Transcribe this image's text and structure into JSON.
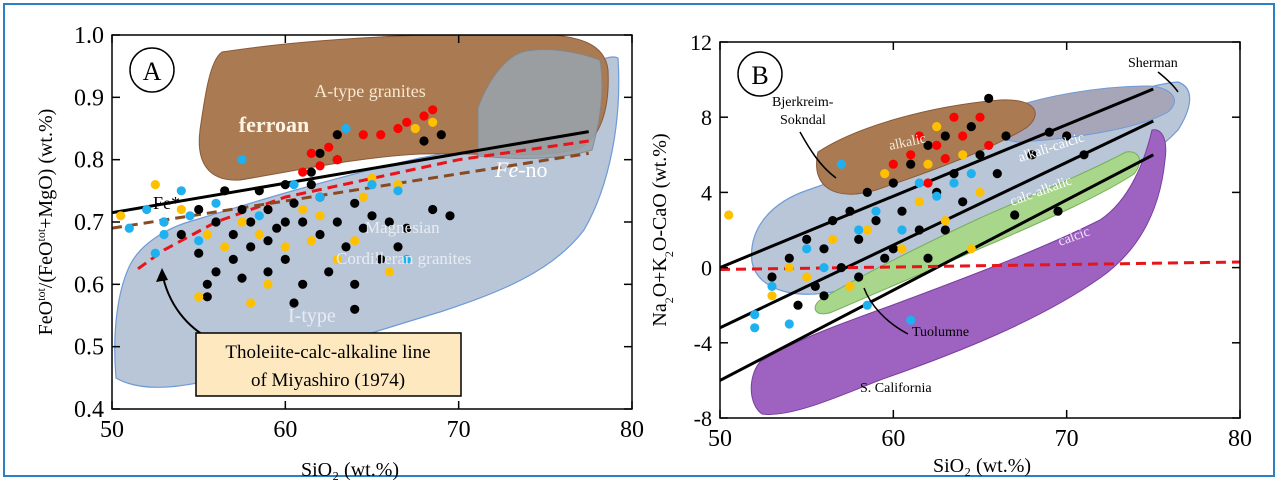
{
  "chart_data": [
    {
      "panel": "A",
      "type": "scatter",
      "xlabel": "SiO₂ (wt.%)",
      "ylabel_parts": [
        "FeO",
        "tot",
        "/(FeO",
        "tot",
        "+MgO) (wt.%)"
      ],
      "xlim": [
        50,
        80
      ],
      "ylim": [
        0.4,
        1.0
      ],
      "xticks": [
        "50",
        "60",
        "70",
        "80"
      ],
      "yticks": [
        "0.4",
        "0.5",
        "0.6",
        "0.7",
        "0.8",
        "0.9",
        "1.0"
      ],
      "field_labels": {
        "atype": "A-type granites",
        "ferroan": "ferroan",
        "feno_prefix": "Fe",
        "feno_suffix": "-no",
        "fe_star": "Fe*",
        "magnesian": "Magnesian",
        "cordilleran": "Cordilleran granites",
        "itype": "I-type"
      },
      "box_text": [
        "Tholeiite-calc-alkaline line",
        "of Miyashiro (1974)"
      ],
      "lines": [
        {
          "style": "black",
          "points": [
            [
              50,
              0.715
            ],
            [
              77.5,
              0.845
            ]
          ]
        },
        {
          "style": "red-dashed",
          "points": [
            [
              51.5,
              0.625
            ],
            [
              53,
              0.655
            ],
            [
              56,
              0.7
            ],
            [
              60,
              0.74
            ],
            [
              65,
              0.77
            ],
            [
              70,
              0.8
            ],
            [
              77.5,
              0.83
            ]
          ]
        },
        {
          "style": "brown-dashed",
          "points": [
            [
              50,
              0.69
            ],
            [
              77.5,
              0.81
            ]
          ]
        }
      ],
      "series": [
        {
          "color": "#000000",
          "points": [
            [
              53,
              0.7
            ],
            [
              54,
              0.68
            ],
            [
              55,
              0.72
            ],
            [
              55,
              0.65
            ],
            [
              55.5,
              0.6
            ],
            [
              56,
              0.7
            ],
            [
              56,
              0.62
            ],
            [
              56.5,
              0.75
            ],
            [
              57,
              0.68
            ],
            [
              57,
              0.64
            ],
            [
              57.5,
              0.72
            ],
            [
              58,
              0.7
            ],
            [
              58,
              0.66
            ],
            [
              58.5,
              0.75
            ],
            [
              59,
              0.72
            ],
            [
              59,
              0.62
            ],
            [
              59.5,
              0.69
            ],
            [
              60,
              0.76
            ],
            [
              60,
              0.7
            ],
            [
              60,
              0.64
            ],
            [
              60.5,
              0.73
            ],
            [
              61,
              0.7
            ],
            [
              61,
              0.6
            ],
            [
              61.5,
              0.78
            ],
            [
              62,
              0.68
            ],
            [
              62,
              0.74
            ],
            [
              62.5,
              0.62
            ],
            [
              63,
              0.7
            ],
            [
              63,
              0.8
            ],
            [
              63.5,
              0.66
            ],
            [
              64,
              0.73
            ],
            [
              64,
              0.6
            ],
            [
              64.5,
              0.69
            ],
            [
              65,
              0.71
            ],
            [
              65.5,
              0.64
            ],
            [
              66,
              0.7
            ],
            [
              66.5,
              0.66
            ],
            [
              67,
              0.69
            ],
            [
              68,
              0.83
            ],
            [
              68.5,
              0.72
            ],
            [
              69,
              0.84
            ],
            [
              69.5,
              0.71
            ],
            [
              62,
              0.81
            ],
            [
              63,
              0.84
            ],
            [
              61.5,
              0.76
            ],
            [
              59,
              0.67
            ],
            [
              57.5,
              0.61
            ],
            [
              55.5,
              0.58
            ],
            [
              60.5,
              0.57
            ],
            [
              64,
              0.56
            ]
          ]
        },
        {
          "color": "#ffc000",
          "points": [
            [
              50.5,
              0.71
            ],
            [
              52.5,
              0.76
            ],
            [
              54,
              0.72
            ],
            [
              55.5,
              0.68
            ],
            [
              56.5,
              0.66
            ],
            [
              57.5,
              0.7
            ],
            [
              58.5,
              0.68
            ],
            [
              59,
              0.6
            ],
            [
              60,
              0.66
            ],
            [
              61,
              0.72
            ],
            [
              61.5,
              0.67
            ],
            [
              62,
              0.71
            ],
            [
              63,
              0.64
            ],
            [
              64,
              0.67
            ],
            [
              64.5,
              0.74
            ],
            [
              65,
              0.77
            ],
            [
              66,
              0.62
            ],
            [
              66.5,
              0.76
            ],
            [
              67.5,
              0.85
            ],
            [
              68.5,
              0.86
            ],
            [
              58,
              0.57
            ],
            [
              55,
              0.58
            ]
          ]
        },
        {
          "color": "#ff0000",
          "points": [
            [
              61.5,
              0.81
            ],
            [
              62,
              0.79
            ],
            [
              62.5,
              0.82
            ],
            [
              63,
              0.8
            ],
            [
              64.5,
              0.84
            ],
            [
              65.5,
              0.84
            ],
            [
              66.5,
              0.85
            ],
            [
              67,
              0.86
            ],
            [
              68,
              0.87
            ],
            [
              68.5,
              0.88
            ],
            [
              61,
              0.78
            ]
          ]
        },
        {
          "color": "#1fb0f0",
          "points": [
            [
              51,
              0.69
            ],
            [
              52,
              0.72
            ],
            [
              52.5,
              0.65
            ],
            [
              53,
              0.68
            ],
            [
              54,
              0.75
            ],
            [
              54.5,
              0.71
            ],
            [
              55,
              0.67
            ],
            [
              56,
              0.73
            ],
            [
              57.5,
              0.8
            ],
            [
              58.5,
              0.71
            ],
            [
              60.5,
              0.76
            ],
            [
              62,
              0.74
            ],
            [
              63.5,
              0.85
            ],
            [
              65,
              0.76
            ],
            [
              66.5,
              0.75
            ],
            [
              67,
              0.64
            ],
            [
              53,
              0.7
            ]
          ]
        }
      ]
    },
    {
      "panel": "B",
      "type": "scatter",
      "xlabel": "SiO₂ (wt.%)",
      "ylabel_parts": [
        "Na",
        "2",
        "O+K",
        "2",
        "O-CaO (wt.%)"
      ],
      "xlim": [
        50,
        80
      ],
      "ylim": [
        -8,
        12
      ],
      "xticks": [
        "50",
        "60",
        "70",
        "80"
      ],
      "yticks": [
        "-8",
        "-4",
        "0",
        "4",
        "8",
        "12"
      ],
      "field_labels": {
        "sherman": "Sherman",
        "bjerk1": "Bjerkreim-",
        "bjerk2": "Sokndal",
        "alkalic": "alkalic",
        "alkalicalcic": "alkali-calcic",
        "calcalkalic": "calc-alkalic",
        "calcic": "calcic",
        "tuolumne": "Tuolumne",
        "scal": "S. California"
      },
      "lines": [
        {
          "style": "black",
          "points": [
            [
              50,
              0
            ],
            [
              75,
              9.5
            ]
          ]
        },
        {
          "style": "black",
          "points": [
            [
              50,
              -3.2
            ],
            [
              75,
              7.8
            ]
          ]
        },
        {
          "style": "black",
          "points": [
            [
              50,
              -6
            ],
            [
              75,
              6
            ]
          ]
        },
        {
          "style": "red-dashed",
          "points": [
            [
              50,
              -0.1
            ],
            [
              80,
              0.3
            ]
          ]
        }
      ],
      "series": [
        {
          "color": "#000000",
          "points": [
            [
              53,
              -0.5
            ],
            [
              54,
              0.5
            ],
            [
              55,
              1.5
            ],
            [
              55.5,
              -1
            ],
            [
              56,
              1
            ],
            [
              56.5,
              2.5
            ],
            [
              57,
              0
            ],
            [
              57.5,
              3
            ],
            [
              58,
              1.5
            ],
            [
              58.5,
              4
            ],
            [
              59,
              2.5
            ],
            [
              59.5,
              0.5
            ],
            [
              60,
              4.5
            ],
            [
              60.5,
              3
            ],
            [
              61,
              5.5
            ],
            [
              61.5,
              2
            ],
            [
              62,
              6.5
            ],
            [
              62.5,
              4
            ],
            [
              63,
              7
            ],
            [
              63.5,
              5
            ],
            [
              64,
              3.5
            ],
            [
              64.5,
              7.5
            ],
            [
              65,
              6
            ],
            [
              65.5,
              9
            ],
            [
              66,
              5
            ],
            [
              66.5,
              7
            ],
            [
              67,
              2.8
            ],
            [
              68,
              6
            ],
            [
              69,
              7.2
            ],
            [
              69.5,
              3
            ],
            [
              70,
              7
            ],
            [
              71,
              6
            ],
            [
              60,
              1
            ],
            [
              58,
              -0.5
            ],
            [
              62,
              0.5
            ],
            [
              54.5,
              -2
            ],
            [
              56,
              -1.5
            ],
            [
              63,
              2
            ]
          ]
        },
        {
          "color": "#ffc000",
          "points": [
            [
              50.5,
              2.8
            ],
            [
              53,
              -1.5
            ],
            [
              54,
              0
            ],
            [
              55,
              -0.5
            ],
            [
              56.5,
              1.5
            ],
            [
              57.5,
              -1
            ],
            [
              58.5,
              2
            ],
            [
              59.5,
              5
            ],
            [
              60.5,
              1
            ],
            [
              61.5,
              3.5
            ],
            [
              62,
              5.5
            ],
            [
              63,
              2.5
            ],
            [
              64,
              6
            ],
            [
              64.5,
              1
            ],
            [
              65,
              4
            ],
            [
              62.5,
              7.5
            ]
          ]
        },
        {
          "color": "#ff0000",
          "points": [
            [
              60,
              5.5
            ],
            [
              61,
              6
            ],
            [
              62,
              4.5
            ],
            [
              62.5,
              6.5
            ],
            [
              63.5,
              8
            ],
            [
              64,
              7
            ],
            [
              65,
              8
            ],
            [
              65.5,
              6.5
            ],
            [
              61.5,
              7
            ],
            [
              63,
              5.8
            ]
          ]
        },
        {
          "color": "#1fb0f0",
          "points": [
            [
              52,
              -2.5
            ],
            [
              53,
              -1
            ],
            [
              54,
              -3
            ],
            [
              55,
              1
            ],
            [
              56,
              0
            ],
            [
              57,
              5.5
            ],
            [
              58,
              2
            ],
            [
              59,
              3
            ],
            [
              60.5,
              2
            ],
            [
              61.5,
              4.5
            ],
            [
              62.5,
              3.8
            ],
            [
              63.5,
              4.5
            ],
            [
              64.5,
              5
            ],
            [
              58.5,
              -2
            ],
            [
              61,
              -2.8
            ],
            [
              52,
              -3.2
            ]
          ]
        }
      ]
    }
  ]
}
